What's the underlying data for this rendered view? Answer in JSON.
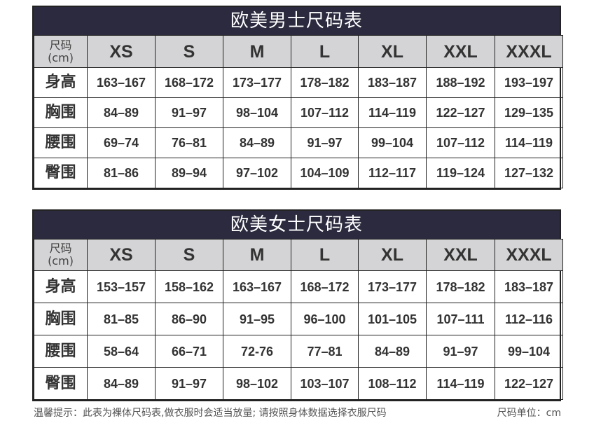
{
  "corner_label": "尺码",
  "corner_unit": "(cm)",
  "sizes": [
    "XS",
    "S",
    "M",
    "L",
    "XL",
    "XXL",
    "XXXL"
  ],
  "tables": [
    {
      "title": "欧美男士尺码表",
      "rows": [
        {
          "label": "身高",
          "values": [
            "163–167",
            "168–172",
            "173–177",
            "178–182",
            "183–187",
            "188–192",
            "193–197"
          ]
        },
        {
          "label": "胸围",
          "values": [
            "84–89",
            "91–97",
            "98–104",
            "107–112",
            "114–119",
            "122–127",
            "129–135"
          ]
        },
        {
          "label": "腰围",
          "values": [
            "69–74",
            "76–81",
            "84–89",
            "91–97",
            "99–104",
            "107–112",
            "114–119"
          ]
        },
        {
          "label": "臀围",
          "values": [
            "81–86",
            "89–94",
            "97–102",
            "104–109",
            "112–117",
            "119–124",
            "127–132"
          ]
        }
      ]
    },
    {
      "title": "欧美女士尺码表",
      "rows": [
        {
          "label": "身高",
          "values": [
            "153–157",
            "158–162",
            "163–167",
            "168–172",
            "173–177",
            "178–182",
            "183–187"
          ]
        },
        {
          "label": "胸围",
          "values": [
            "81–85",
            "86–90",
            "91–95",
            "96–100",
            "101–105",
            "107–111",
            "112–116"
          ]
        },
        {
          "label": "腰围",
          "values": [
            "58–64",
            "66–71",
            "72-76",
            "77–81",
            "84–89",
            "91–97",
            "99–104"
          ]
        },
        {
          "label": "臀围",
          "values": [
            "84–89",
            "91–97",
            "98–102",
            "103–107",
            "108–112",
            "114–119",
            "122–127"
          ]
        }
      ]
    }
  ],
  "footer": {
    "note": "温馨提示：此表为裸体尺码表,做衣服时会适当放量; 请按照身体数据选择衣服尺码",
    "unit": "尺码单位：cm"
  },
  "colors": {
    "title_bar": "#2b2a3e",
    "header_row": "#d4d4d6"
  }
}
